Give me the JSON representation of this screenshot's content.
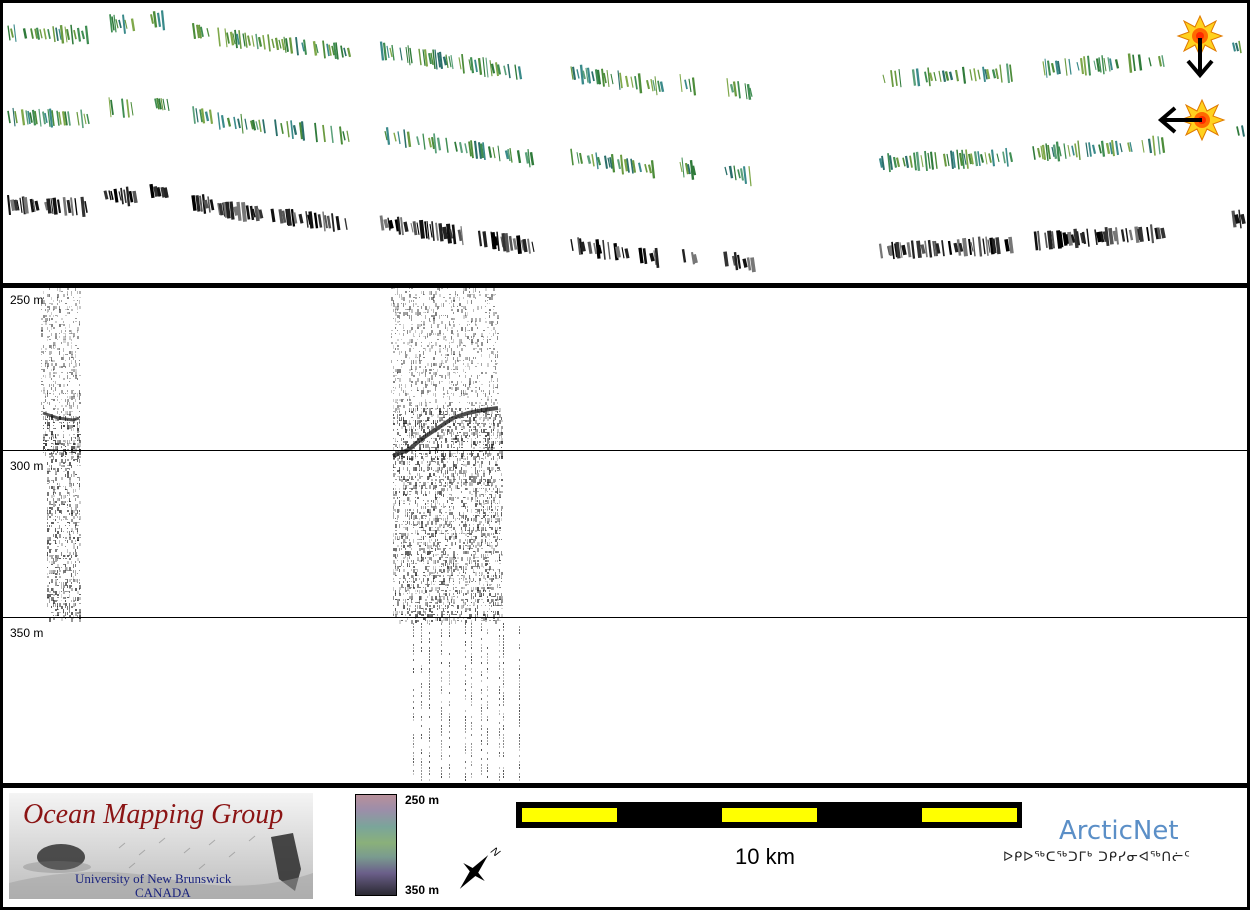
{
  "profile": {
    "depth_labels": [
      "250 m",
      "300 m",
      "350 m"
    ]
  },
  "footer": {
    "logo_title": "Ocean Mapping Group",
    "logo_sub1": "University of New Brunswick",
    "logo_sub2": "CANADA",
    "colorbar_top": "250 m",
    "colorbar_bottom": "350 m",
    "scale_label": "10 km",
    "partner_name": "ArcticNet",
    "partner_inuktitut": "ᐅᑭᐅᖅᑕᖅᑐᒥᒃ ᑐᑭᓯᓂᐊᖅᑎᓖᑦ"
  },
  "icons": [
    "sun-icon",
    "arrow-down-icon",
    "arrow-left-icon",
    "north-arrow-icon"
  ],
  "colors": {
    "background": "#000000",
    "panel": "#ffffff",
    "scale_yellow": "#ffff00",
    "logo_red": "#8b1414",
    "logo_blue": "#1a237e",
    "arcticnet_blue": "#5b8fc7"
  }
}
